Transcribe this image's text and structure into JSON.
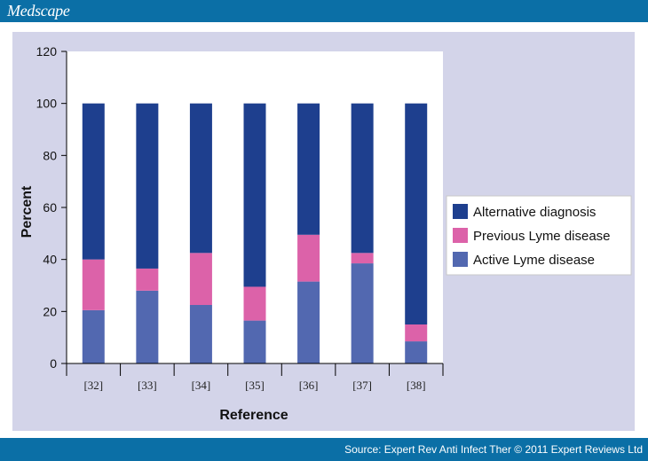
{
  "header": {
    "brand": "Medscape"
  },
  "footer": {
    "source": "Source: Expert Rev Anti Infect Ther © 2011 Expert Reviews Ltd"
  },
  "colors": {
    "bar_band": "#0b6fa6",
    "panel": "#d3d4e9",
    "plot_bg": "#ffffff",
    "alternative": "#1e3f8e",
    "previous": "#dc62a9",
    "active": "#5268b0"
  },
  "chart_data": {
    "type": "bar",
    "stacked": true,
    "title": "",
    "xlabel": "Reference",
    "ylabel": "Percent",
    "ylim": [
      0,
      120
    ],
    "yticks": [
      0,
      20,
      40,
      60,
      80,
      100,
      120
    ],
    "categories": [
      "[32]",
      "[33]",
      "[34]",
      "[35]",
      "[36]",
      "[37]",
      "[38]"
    ],
    "series": [
      {
        "name": "Active Lyme disease",
        "color": "#5268b0",
        "values": [
          20.5,
          28,
          22.5,
          16.5,
          31.5,
          38.5,
          8.5
        ]
      },
      {
        "name": "Previous Lyme disease",
        "color": "#dc62a9",
        "values": [
          19.5,
          8.5,
          20,
          13,
          18,
          4,
          6.5
        ]
      },
      {
        "name": "Alternative diagnosis",
        "color": "#1e3f8e",
        "values": [
          60,
          63.5,
          57.5,
          70.5,
          50.5,
          57.5,
          85
        ]
      }
    ],
    "legend": {
      "placement": "right",
      "order": [
        "Alternative diagnosis",
        "Previous Lyme disease",
        "Active Lyme disease"
      ]
    },
    "grid": false
  }
}
